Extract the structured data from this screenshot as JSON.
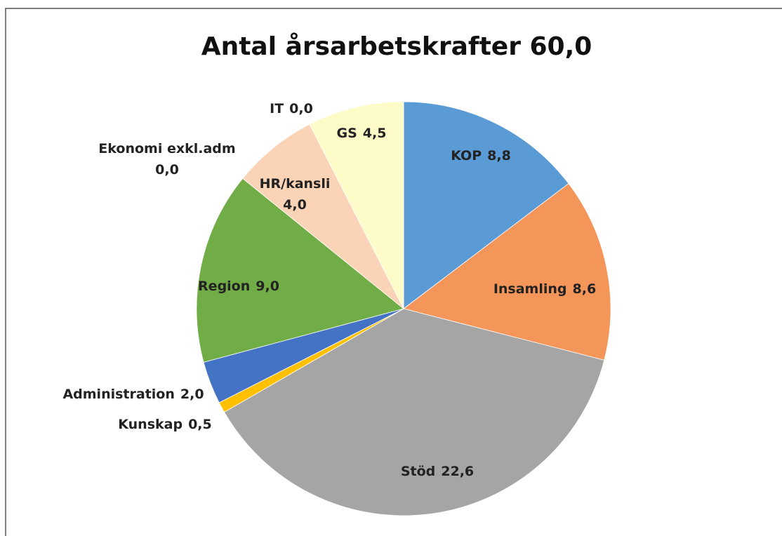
{
  "chart_data": {
    "type": "pie",
    "title": "Antal årsarbetskrafter 60,0",
    "categories": [
      "KOP",
      "Insamling",
      "Stöd",
      "Kunskap",
      "Administration",
      "Region",
      "Ekonomi exkl.adm",
      "HR/kansli",
      "IT",
      "GS"
    ],
    "values": [
      8.8,
      8.6,
      22.6,
      0.5,
      2.0,
      9.0,
      0.0,
      4.0,
      0.0,
      4.5
    ],
    "value_labels": [
      "8,8",
      "8,6",
      "22,6",
      "0,5",
      "2,0",
      "9,0",
      "0,0",
      "4,0",
      "0,0",
      "4,5"
    ],
    "colors": [
      "#5b9bd5",
      "#f4955a",
      "#a5a5a5",
      "#ffc000",
      "#4472c4",
      "#70ad47",
      "#c9c9c9",
      "#fbd3b6",
      "#e0e0e0",
      "#fdfbc8"
    ]
  }
}
